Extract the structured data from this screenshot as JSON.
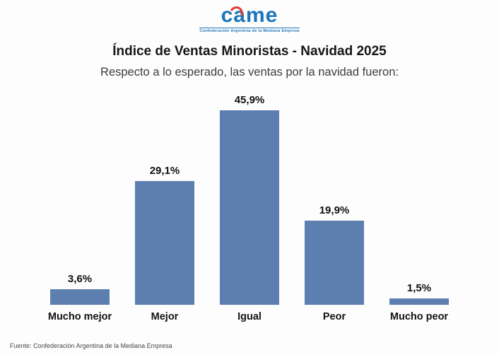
{
  "logo": {
    "text": "came",
    "tagline": "Confederación Argentina de la Mediana Empresa"
  },
  "title": "Índice de Ventas Minoristas - Navidad 2025",
  "subtitle": "Respecto a lo esperado, las ventas por la navidad fueron:",
  "footer": "Fuente: Confederación Argentina de la Mediana Empresa",
  "colors": {
    "bar": "#5d7fb0",
    "logo_blue": "#1b75bb",
    "logo_red": "#e23b33"
  },
  "chart_data": {
    "type": "bar",
    "title": "Índice de Ventas Minoristas - Navidad 2025",
    "subtitle": "Respecto a lo esperado, las ventas por la navidad fueron:",
    "categories": [
      "Mucho mejor",
      "Mejor",
      "Igual",
      "Peor",
      "Mucho peor"
    ],
    "values": [
      3.6,
      29.1,
      45.9,
      19.9,
      1.5
    ],
    "value_labels": [
      "3,6%",
      "29,1%",
      "45,9%",
      "19,9%",
      "1,5%"
    ],
    "xlabel": "",
    "ylabel": "",
    "ylim": [
      0,
      50
    ],
    "grid": false,
    "legend": false,
    "source": "Fuente: Confederación Argentina de la Mediana Empresa"
  }
}
